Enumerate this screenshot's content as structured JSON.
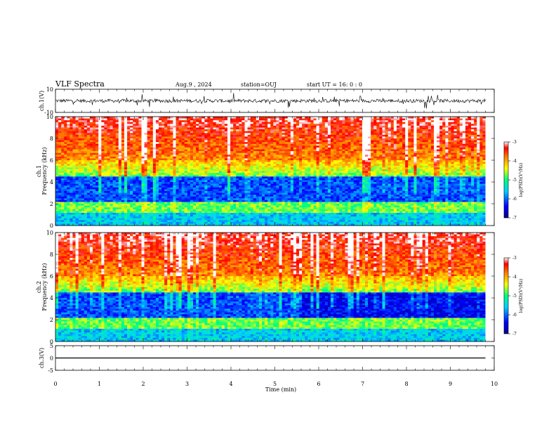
{
  "header": {
    "title": "VLF Spectra",
    "date": "Aug.9 , 2024",
    "station": "station=OUJ",
    "start": "start UT =  16: 0 : 0"
  },
  "chart_data": [
    {
      "type": "line",
      "name": "ch1-waveform",
      "ylabel": "ch.1(V)",
      "ylim": [
        -10,
        10
      ],
      "yticks": [
        "10",
        "-10"
      ],
      "xlim": [
        0,
        10
      ],
      "x": [
        0,
        9.8
      ],
      "y_level": 0,
      "color": "#000000"
    },
    {
      "type": "heatmap",
      "name": "ch1-spectrogram",
      "ylabel": "ch.1",
      "ylabel2": "Frequency (kHz)",
      "ylim": [
        0,
        10
      ],
      "yticks": [
        "0",
        "2",
        "4",
        "6",
        "8",
        "10"
      ],
      "xlim": [
        0,
        10
      ],
      "data_end_min": 9.8
    },
    {
      "type": "heatmap",
      "name": "ch2-spectrogram",
      "ylabel": "ch.2",
      "ylabel2": "Frequency (kHz)",
      "ylim": [
        0,
        10
      ],
      "yticks": [
        "0",
        "2",
        "4",
        "6",
        "8",
        "10"
      ],
      "xlim": [
        0,
        10
      ],
      "data_end_min": 9.8
    },
    {
      "type": "line",
      "name": "ch3-waveform",
      "ylabel": "ch.3(V)",
      "ylim": [
        -5,
        5
      ],
      "yticks": [
        "5",
        "0",
        "-5"
      ],
      "xlim": [
        0,
        10
      ],
      "x": [
        0,
        9.8
      ],
      "y_level": 0,
      "color": "#000000"
    }
  ],
  "xaxis": {
    "label": "Time (min)",
    "ticks": [
      "0",
      "1",
      "2",
      "3",
      "4",
      "5",
      "6",
      "7",
      "8",
      "9",
      "10"
    ]
  },
  "colorbar": {
    "label": "log(PSD)(V²/Hz)",
    "ticks": [
      "-3",
      "-4",
      "-5",
      "-6",
      "-7"
    ],
    "range": [
      -7,
      -3
    ],
    "colors": [
      "#00008b",
      "#0000ff",
      "#00d0ff",
      "#00ff80",
      "#ffff00",
      "#ff8000",
      "#ff0000",
      "#ffffff"
    ]
  }
}
